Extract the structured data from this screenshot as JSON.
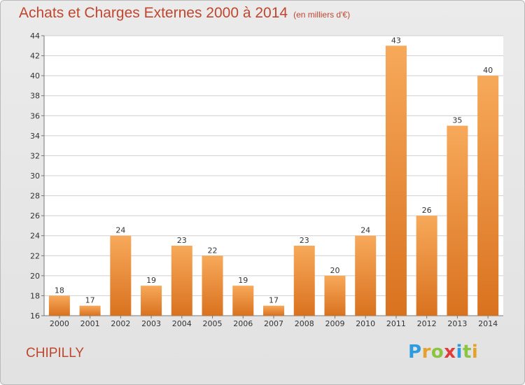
{
  "title": "Achats et Charges Externes 2000 à 2014",
  "subtitle": "(en milliers d'€)",
  "commune": "CHIPILLY",
  "logo": {
    "letters": [
      "P",
      "r",
      "o",
      "x",
      "i",
      "t",
      "i"
    ],
    "colors": [
      "#2d9be0",
      "#e8a02c",
      "#8cc43f",
      "#e03c3c",
      "#2d9be0",
      "#8cc43f",
      "#e8a02c"
    ]
  },
  "colors": {
    "bar_top": "#f7a95a",
    "bar_bottom": "#d9721f",
    "grid": "#cfcfcf",
    "title": "#c0462e"
  },
  "chart_data": {
    "type": "bar",
    "title": "Achats et Charges Externes 2000 à 2014",
    "subtitle": "(en milliers d'€)",
    "categories": [
      "2000",
      "2001",
      "2002",
      "2003",
      "2004",
      "2005",
      "2006",
      "2007",
      "2008",
      "2009",
      "2010",
      "2011",
      "2012",
      "2013",
      "2014"
    ],
    "values": [
      18,
      17,
      24,
      19,
      23,
      22,
      19,
      17,
      23,
      20,
      24,
      43,
      26,
      35,
      40
    ],
    "ylim": [
      16,
      44
    ],
    "yticks": [
      16,
      18,
      20,
      22,
      24,
      26,
      28,
      30,
      32,
      34,
      36,
      38,
      40,
      42,
      44
    ],
    "grid": true,
    "data_labels": true
  }
}
